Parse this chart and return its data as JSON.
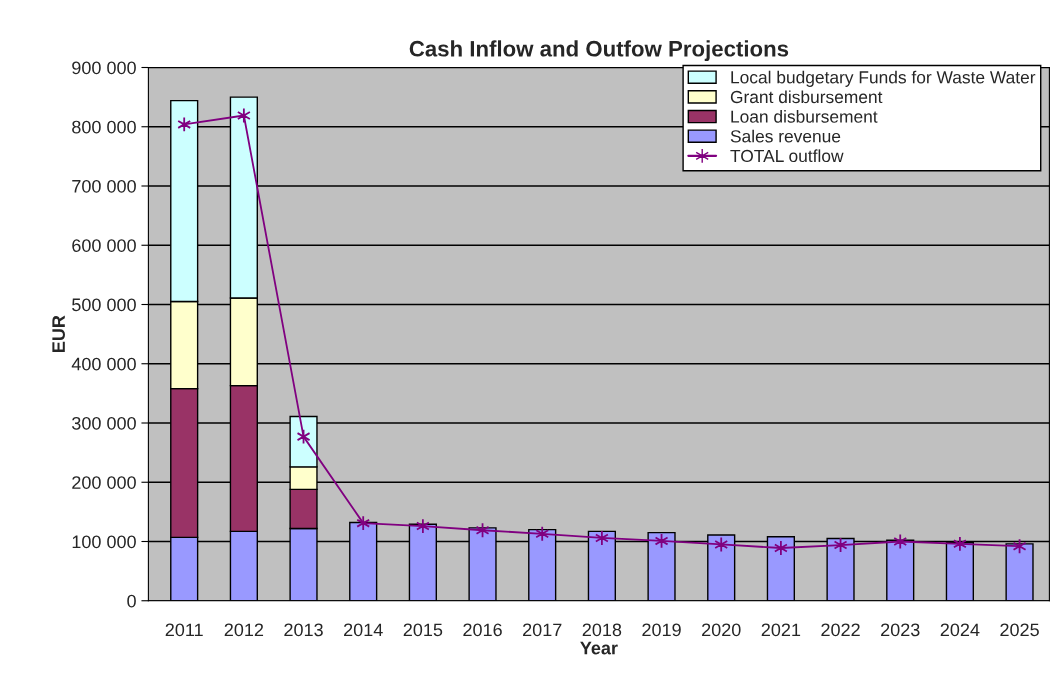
{
  "chart_data": {
    "type": "bar",
    "title": "Cash Inflow and Outfow Projections",
    "xlabel": "Year",
    "ylabel": "EUR",
    "categories": [
      "2011",
      "2012",
      "2013",
      "2014",
      "2015",
      "2016",
      "2017",
      "2018",
      "2019",
      "2020",
      "2021",
      "2022",
      "2023",
      "2024",
      "2025"
    ],
    "stacked": true,
    "series": [
      {
        "name": "Sales revenue",
        "color": "#9999ff",
        "values": [
          107000,
          117000,
          122000,
          132000,
          129000,
          123000,
          120000,
          117000,
          115000,
          111000,
          108000,
          105000,
          102000,
          98000,
          96000
        ]
      },
      {
        "name": "Loan disbursement",
        "color": "#993366",
        "values": [
          251000,
          246000,
          66000,
          null,
          null,
          null,
          null,
          null,
          null,
          null,
          null,
          null,
          null,
          null,
          null
        ]
      },
      {
        "name": "Grant disbursement",
        "color": "#ffffcc",
        "values": [
          147000,
          148000,
          38000,
          null,
          null,
          null,
          null,
          null,
          null,
          null,
          null,
          null,
          null,
          null,
          null
        ]
      },
      {
        "name": "Local budgetary Funds for Waste Water",
        "color": "#ccffff",
        "values": [
          339000,
          339000,
          85000,
          null,
          null,
          null,
          null,
          null,
          null,
          null,
          null,
          null,
          null,
          null,
          null
        ]
      },
      {
        "name": "TOTAL outflow",
        "type": "line",
        "color": "#800080",
        "marker": "cross",
        "values": [
          804000,
          819000,
          277000,
          131000,
          126000,
          119000,
          113000,
          106000,
          101000,
          95000,
          89000,
          94000,
          100000,
          96000,
          92000
        ]
      }
    ],
    "ylim": [
      0,
      900000
    ],
    "yticks": [
      {
        "value": 0,
        "label": "0"
      },
      {
        "value": 100000,
        "label": "100 000"
      },
      {
        "value": 200000,
        "label": "200 000"
      },
      {
        "value": 300000,
        "label": "300 000"
      },
      {
        "value": 400000,
        "label": "400 000"
      },
      {
        "value": 500000,
        "label": "500 000"
      },
      {
        "value": 600000,
        "label": "600 000"
      },
      {
        "value": 700000,
        "label": "700 000"
      },
      {
        "value": 800000,
        "label": "800 000"
      },
      {
        "value": 900000,
        "label": "900 000"
      }
    ],
    "grid": "y",
    "legend": "top right"
  }
}
